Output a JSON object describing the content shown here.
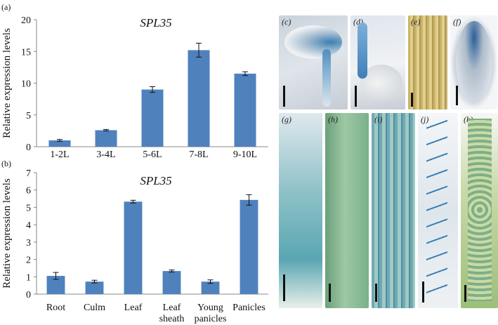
{
  "chart_data": [
    {
      "type": "bar",
      "panel_label": "(a)",
      "title": "SPL35",
      "ylabel": "Relative expression levels",
      "xlabel": "",
      "ylim": [
        0,
        20
      ],
      "yticks": [
        0,
        5,
        10,
        15,
        20
      ],
      "categories": [
        "1-2L",
        "3-4L",
        "5-6L",
        "7-8L",
        "9-10L"
      ],
      "values": [
        1.0,
        2.6,
        9.0,
        15.2,
        11.5
      ],
      "errors": [
        0.15,
        0.12,
        0.45,
        1.1,
        0.3
      ],
      "grid": false,
      "bar_color": "#4f81bd"
    },
    {
      "type": "bar",
      "panel_label": "(b)",
      "title": "SPL35",
      "ylabel": "Relative expression levels",
      "xlabel": "",
      "ylim": [
        0,
        7
      ],
      "yticks": [
        0,
        1,
        2,
        3,
        4,
        5,
        6,
        7
      ],
      "categories": [
        "Root",
        "Culm",
        "Leaf",
        "Leaf\nsheath",
        "Young\npanicles",
        "Panicles"
      ],
      "values": [
        1.05,
        0.72,
        5.33,
        1.33,
        0.72,
        5.43
      ],
      "errors": [
        0.2,
        0.08,
        0.08,
        0.06,
        0.1,
        0.3
      ],
      "grid": false,
      "bar_color": "#4f81bd"
    }
  ],
  "photos": [
    {
      "label": "(c)",
      "subject": "germinating seed stained blue"
    },
    {
      "label": "(d)",
      "subject": "seedling with stained shoot and root"
    },
    {
      "label": "(e)",
      "subject": "leaf blade with blue spots"
    },
    {
      "label": "(f)",
      "subject": "seed stained blue"
    },
    {
      "label": "(g)",
      "subject": "root stained blue"
    },
    {
      "label": "(h)",
      "subject": "culm node"
    },
    {
      "label": "(i)",
      "subject": "leaf sheath"
    },
    {
      "label": "(j)",
      "subject": "young panicle"
    },
    {
      "label": "(k)",
      "subject": "mature panicle"
    }
  ]
}
